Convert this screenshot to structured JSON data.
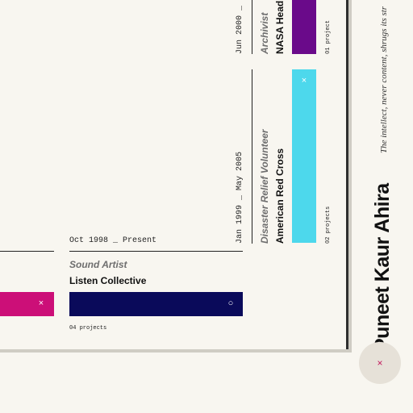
{
  "profile": {
    "name": "Puneet Kaur Ahira",
    "tagline": "The intellect, never content, shrugs its str"
  },
  "entries": [
    {
      "date": "Oct 1998 _ Present",
      "role": "Sound Artist",
      "org": "Listen Collective",
      "count": "04 projects",
      "color": "#0a0a5a",
      "icon": "circle-icon",
      "icon_glyph": "○"
    },
    {
      "date": "Jan 1999 _ May 2005",
      "role": "Disaster Relief Volunteer",
      "org": "American Red Cross",
      "count": "02 projects",
      "color": "#4dd8ec",
      "icon": "close-icon",
      "icon_glyph": "×"
    },
    {
      "date": "Jun 2000 _",
      "role": "Archivist",
      "org": "NASA Head",
      "count": "01 project",
      "color": "#6a0a8a",
      "icon": "close-icon",
      "icon_glyph": "×"
    },
    {
      "color": "#cc0f78",
      "icon": "close-icon",
      "icon_glyph": "×"
    }
  ],
  "close_button": {
    "icon": "close-icon",
    "glyph": "×"
  }
}
